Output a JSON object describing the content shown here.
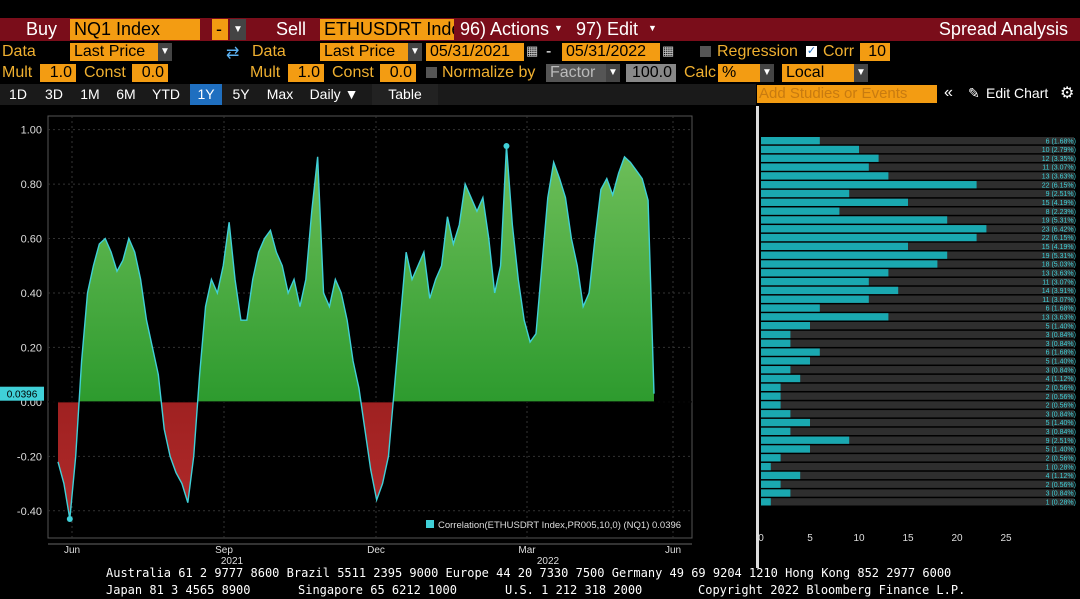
{
  "toolbar": {
    "buy_label": "Buy",
    "buy_ticker": "NQ1 Index",
    "minus_label": "-",
    "sell_label": "Sell",
    "sell_ticker": "ETHUSDRT Index",
    "actions_label": "96) Actions",
    "edit_label": "97) Edit",
    "title": "Spread Analysis"
  },
  "row2": {
    "data_label": "Data",
    "price_left": "Last Price",
    "data_label2": "Data",
    "price_right": "Last Price",
    "date_from": "05/31/2021",
    "dash": "-",
    "date_to": "05/31/2022",
    "regression_label": "Regression",
    "corr_label": "Corr",
    "corr_value": "10"
  },
  "row3": {
    "mult_label": "Mult",
    "mult_left": "1.0",
    "const_label": "Const",
    "const_left": "0.0",
    "mult_label2": "Mult",
    "mult_right": "1.0",
    "const_label2": "Const",
    "const_right": "0.0",
    "normalize_label": "Normalize by",
    "normalize_value": "Factor",
    "normalize_num": "100.0",
    "calc_label": "Calc",
    "calc_value": "%",
    "local_value": "Local"
  },
  "periods": [
    "1D",
    "3D",
    "1M",
    "6M",
    "YTD",
    "1Y",
    "5Y",
    "Max"
  ],
  "selected_period": "1Y",
  "daily_label": "Daily ▼",
  "table_label": "Table",
  "studies_placeholder": "Add Studies or Events",
  "edit_chart_label": "Edit Chart",
  "colors": {
    "accent": "#f39c12",
    "header_red": "#7a0d1a",
    "positive": "#1e9c2a",
    "negative": "#8b1a1a",
    "line": "#40d0d8",
    "hist": "#1aa8b0"
  },
  "chart_data": [
    {
      "type": "area",
      "x_ticks": [
        "Jun",
        "Sep",
        "Dec",
        "Mar",
        "Jun"
      ],
      "year_labels": [
        "2021",
        "2022"
      ],
      "y_ticks": [
        "1.00",
        "0.80",
        "0.60",
        "0.40",
        "0.20",
        "0.00",
        "-0.20",
        "-0.40"
      ],
      "ylim": [
        -0.5,
        1.05
      ],
      "current_value_tag": "0.0396",
      "legend": "Correlation(ETHUSDRT Index,PR005,10,0) (NQ1) 0.0396",
      "series": [
        {
          "values": [
            -0.22,
            -0.3,
            -0.43,
            -0.2,
            0.15,
            0.4,
            0.5,
            0.58,
            0.6,
            0.55,
            0.48,
            0.52,
            0.6,
            0.55,
            0.45,
            0.3,
            0.2,
            0.1,
            -0.1,
            -0.2,
            -0.26,
            -0.3,
            -0.37,
            -0.2,
            0.1,
            0.35,
            0.45,
            0.4,
            0.5,
            0.66,
            0.45,
            0.3,
            0.3,
            0.45,
            0.55,
            0.6,
            0.63,
            0.55,
            0.5,
            0.4,
            0.45,
            0.35,
            0.45,
            0.7,
            0.9,
            0.4,
            0.35,
            0.45,
            0.4,
            0.3,
            0.15,
            0.05,
            -0.1,
            -0.25,
            -0.36,
            -0.3,
            -0.2,
            0.05,
            0.3,
            0.55,
            0.45,
            0.5,
            0.55,
            0.38,
            0.45,
            0.5,
            0.68,
            0.58,
            0.65,
            0.8,
            0.75,
            0.7,
            0.75,
            0.6,
            0.4,
            0.5,
            0.94,
            0.65,
            0.45,
            0.3,
            0.22,
            0.25,
            0.5,
            0.75,
            0.88,
            0.82,
            0.75,
            0.6,
            0.5,
            0.35,
            0.4,
            0.6,
            0.78,
            0.82,
            0.76,
            0.84,
            0.9,
            0.88,
            0.85,
            0.82,
            0.74,
            0.03
          ]
        }
      ]
    },
    {
      "type": "bar",
      "orientation": "horizontal",
      "x_ticks": [
        "0",
        "5",
        "10",
        "15",
        "20",
        "25"
      ],
      "xlim": [
        0,
        25
      ],
      "counts": [
        6,
        10,
        12,
        11,
        13,
        22,
        9,
        15,
        8,
        19,
        23,
        22,
        15,
        19,
        18,
        13,
        11,
        14,
        11,
        6,
        13,
        5,
        3,
        3,
        6,
        5,
        3,
        4,
        2,
        2,
        2,
        3,
        5,
        3,
        9,
        5,
        2,
        1,
        4,
        2,
        3,
        1
      ],
      "labels": [
        "6 (1.68%)",
        "10 (2.79%)",
        "12 (3.35%)",
        "11 (3.07%)",
        "13 (3.63%)",
        "22 (6.15%)",
        "9 (2.51%)",
        "15 (4.19%)",
        "8 (2.23%)",
        "19 (5.31%)",
        "23 (6.42%)",
        "22 (6.15%)",
        "15 (4.19%)",
        "19 (5.31%)",
        "18 (5.03%)",
        "13 (3.63%)",
        "11 (3.07%)",
        "14 (3.91%)",
        "11 (3.07%)",
        "6 (1.68%)",
        "13 (3.63%)",
        "5 (1.40%)",
        "3 (0.84%)",
        "3 (0.84%)",
        "6 (1.68%)",
        "5 (1.40%)",
        "3 (0.84%)",
        "4 (1.12%)",
        "2 (0.56%)",
        "2 (0.56%)",
        "2 (0.56%)",
        "3 (0.84%)",
        "5 (1.40%)",
        "3 (0.84%)",
        "9 (2.51%)",
        "5 (1.40%)",
        "2 (0.56%)",
        "1 (0.28%)",
        "4 (1.12%)",
        "2 (0.56%)",
        "3 (0.84%)",
        "1 (0.28%)"
      ]
    }
  ],
  "footer": {
    "line1": "Australia 61 2 9777 8600 Brazil 5511 2395 9000 Europe 44 20 7330 7500 Germany 49 69 9204 1210 Hong Kong 852 2977 6000",
    "line2a": "Japan 81 3 4565 8900",
    "line2b": "Singapore 65 6212 1000",
    "line2c": "U.S. 1 212 318 2000",
    "line2d": "Copyright 2022 Bloomberg Finance L.P."
  }
}
